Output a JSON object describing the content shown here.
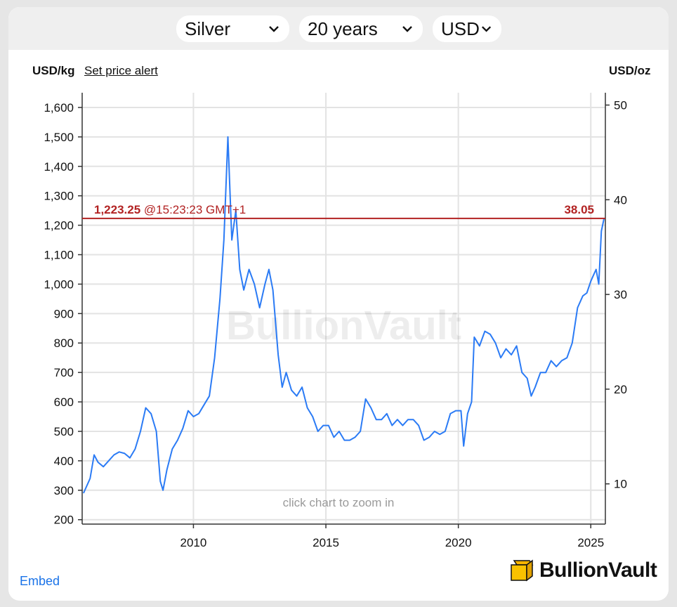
{
  "controls": {
    "metal": "Silver",
    "period": "20 years",
    "currency": "USD"
  },
  "labels": {
    "left_unit": "USD/kg",
    "set_price_alert": "Set price alert",
    "right_unit": "USD/oz",
    "current_kg": "1,223.25",
    "current_time": "@15:23:23 GMT+1",
    "current_oz": "38.05",
    "watermark": "BullionVault",
    "hint": "click chart to zoom in",
    "embed": "Embed",
    "logo": "BullionVault"
  },
  "colors": {
    "line": "#2b7bf5",
    "price_line": "#b22222",
    "grid": "#e3e3e3"
  },
  "chart_data": {
    "type": "line",
    "xlabel": "",
    "ylabel": "USD/kg",
    "y2label": "USD/oz",
    "xlim": [
      2005.8,
      2025.55
    ],
    "ylim": [
      185,
      1650
    ],
    "y2lim": [
      5.75,
      51.3
    ],
    "x_ticks": [
      "2010",
      "2015",
      "2020",
      "2025"
    ],
    "y_ticks": [
      "200",
      "300",
      "400",
      "500",
      "600",
      "700",
      "800",
      "900",
      "1,000",
      "1,100",
      "1,200",
      "1,300",
      "1,400",
      "1,500",
      "1,600"
    ],
    "y2_ticks": [
      "10",
      "20",
      "30",
      "40",
      "50"
    ],
    "current": {
      "usd_kg": 1223.25,
      "usd_oz": 38.05
    },
    "grid": true,
    "series": [
      {
        "x": [
          2005.85,
          2006.1,
          2006.25,
          2006.4,
          2006.6,
          2006.8,
          2007.0,
          2007.2,
          2007.4,
          2007.6,
          2007.8,
          2008.0,
          2008.2,
          2008.4,
          2008.6,
          2008.75,
          2008.85,
          2009.0,
          2009.2,
          2009.4,
          2009.6,
          2009.8,
          2010.0,
          2010.2,
          2010.4,
          2010.6,
          2010.8,
          2011.0,
          2011.15,
          2011.3,
          2011.45,
          2011.6,
          2011.75,
          2011.9,
          2012.1,
          2012.3,
          2012.5,
          2012.7,
          2012.85,
          2013.0,
          2013.2,
          2013.35,
          2013.5,
          2013.7,
          2013.9,
          2014.1,
          2014.3,
          2014.5,
          2014.7,
          2014.9,
          2015.1,
          2015.3,
          2015.5,
          2015.7,
          2015.9,
          2016.1,
          2016.3,
          2016.5,
          2016.7,
          2016.9,
          2017.1,
          2017.3,
          2017.5,
          2017.7,
          2017.9,
          2018.1,
          2018.3,
          2018.5,
          2018.7,
          2018.9,
          2019.1,
          2019.3,
          2019.5,
          2019.7,
          2019.9,
          2020.1,
          2020.2,
          2020.35,
          2020.5,
          2020.6,
          2020.8,
          2021.0,
          2021.2,
          2021.4,
          2021.6,
          2021.8,
          2022.0,
          2022.2,
          2022.4,
          2022.6,
          2022.75,
          2022.9,
          2023.1,
          2023.3,
          2023.5,
          2023.7,
          2023.9,
          2024.1,
          2024.3,
          2024.5,
          2024.7,
          2024.85,
          2025.0,
          2025.1,
          2025.2,
          2025.3,
          2025.4,
          2025.5
        ],
        "values": [
          290,
          340,
          420,
          395,
          380,
          400,
          420,
          430,
          425,
          410,
          440,
          500,
          580,
          560,
          500,
          330,
          300,
          370,
          440,
          470,
          510,
          570,
          550,
          560,
          590,
          620,
          750,
          950,
          1150,
          1500,
          1150,
          1250,
          1050,
          980,
          1050,
          1000,
          920,
          1000,
          1050,
          980,
          760,
          650,
          700,
          640,
          620,
          650,
          580,
          550,
          500,
          520,
          520,
          480,
          500,
          470,
          470,
          480,
          500,
          610,
          580,
          540,
          540,
          560,
          520,
          540,
          520,
          540,
          540,
          520,
          470,
          480,
          500,
          490,
          500,
          560,
          570,
          570,
          450,
          560,
          600,
          820,
          790,
          840,
          830,
          800,
          750,
          780,
          760,
          790,
          700,
          680,
          620,
          650,
          700,
          700,
          740,
          720,
          740,
          750,
          800,
          920,
          960,
          970,
          1010,
          1030,
          1050,
          1000,
          1180,
          1223
        ]
      }
    ]
  }
}
